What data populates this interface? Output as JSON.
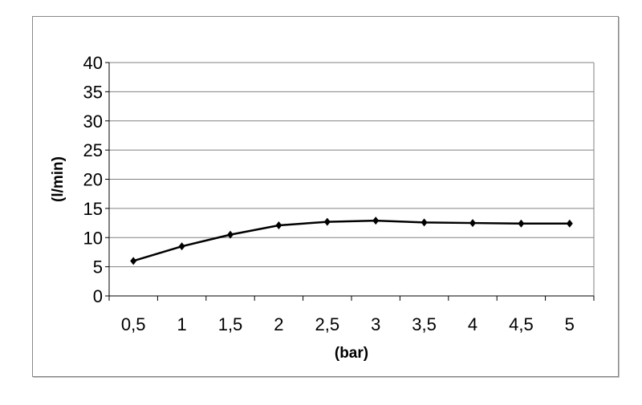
{
  "chart_data": {
    "type": "line",
    "title": "",
    "xlabel": "(bar)",
    "ylabel": "(l/min)",
    "categories": [
      "0,5",
      "1",
      "1,5",
      "2",
      "2,5",
      "3",
      "3,5",
      "4",
      "4,5",
      "5"
    ],
    "series": [
      {
        "values": [
          6,
          8.5,
          10.5,
          12.1,
          12.7,
          12.9,
          12.6,
          12.5,
          12.4,
          12.4
        ]
      }
    ],
    "ylim": [
      0,
      40
    ],
    "yticks": [
      0,
      5,
      10,
      15,
      20,
      25,
      30,
      35,
      40
    ],
    "grid": true,
    "line_color": "#000000",
    "marker": "diamond"
  }
}
